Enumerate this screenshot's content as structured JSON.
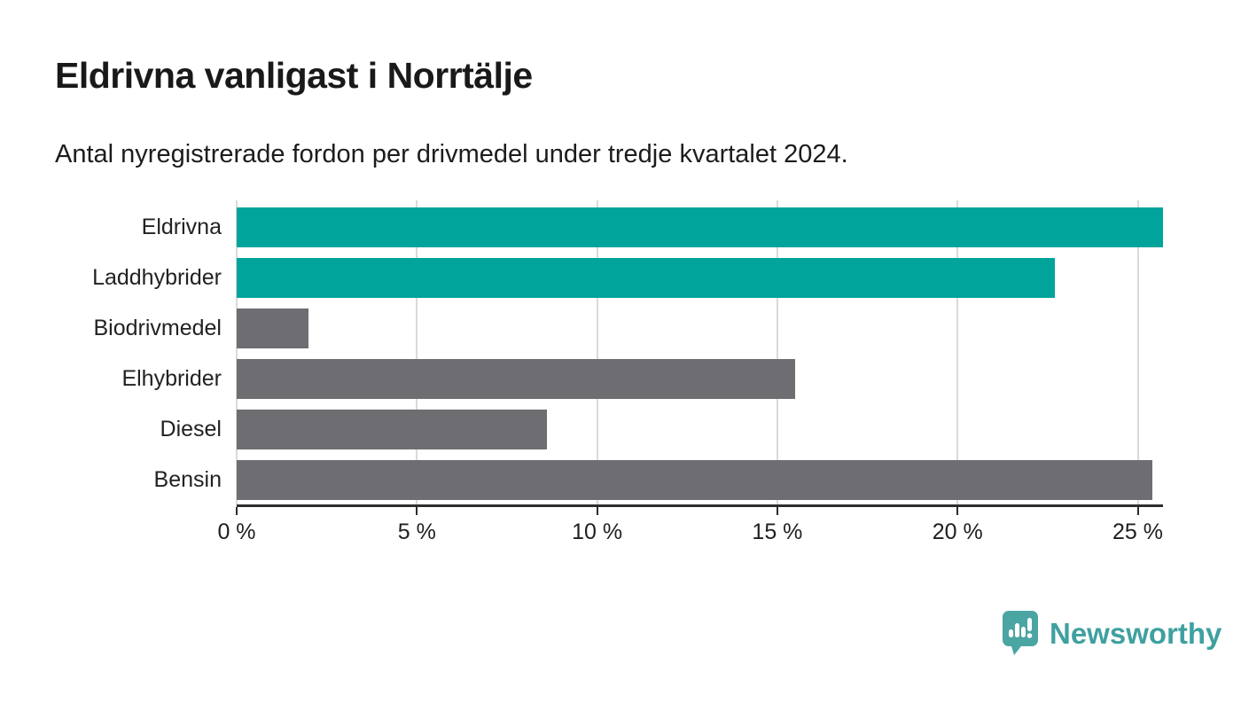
{
  "header": {
    "title": "Eldrivna vanligast i Norrtälje",
    "subtitle": "Antal nyregistrerade fordon per drivmedel under tredje kvartalet 2024."
  },
  "chart_data": {
    "type": "bar",
    "orientation": "horizontal",
    "title": "Eldrivna vanligast i Norrtälje",
    "subtitle": "Antal nyregistrerade fordon per drivmedel under tredje kvartalet 2024.",
    "categories": [
      "Eldrivna",
      "Laddhybrider",
      "Biodrivmedel",
      "Elhybrider",
      "Diesel",
      "Bensin"
    ],
    "values": [
      25.7,
      22.7,
      2.0,
      15.5,
      8.6,
      25.4
    ],
    "unit": "%",
    "xlim": [
      0,
      25.7
    ],
    "x_tick_values": [
      0,
      5,
      10,
      15,
      20,
      25
    ],
    "x_tick_labels": [
      "0 %",
      "5 %",
      "10 %",
      "15 %",
      "20 %",
      "25 %"
    ],
    "grid": "vertical-gridlines-on",
    "legend": "none",
    "bar_colors": [
      "#00a49b",
      "#00a49b",
      "#6d6d72",
      "#6d6d72",
      "#6d6d72",
      "#6d6d72"
    ],
    "colors": {
      "highlight": "#00a49b",
      "base_gray": "#6d6d72",
      "gridline": "#dadada",
      "axis": "#2d2d2d",
      "text": "#1c1c1c"
    }
  },
  "footer": {
    "brand": "Newsworthy",
    "brand_color": "#3fa0a0",
    "logo_icon": "newsworthy-speech-bubble-barchart-icon"
  }
}
